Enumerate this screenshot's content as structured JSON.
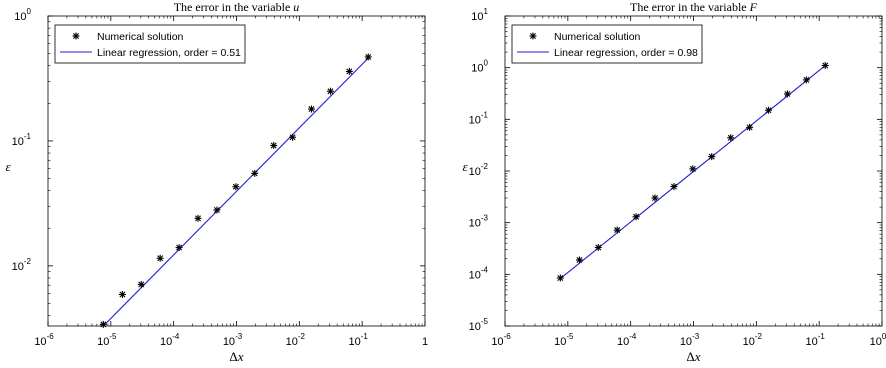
{
  "chart_data": [
    {
      "type": "scatter",
      "title": "The error in the variable ",
      "title_var": "u",
      "xlabel": "Δx",
      "ylabel": "ε",
      "xscale": "log",
      "yscale": "log",
      "xlim": [
        1e-06,
        1
      ],
      "ylim": [
        0.0033,
        1
      ],
      "xticks": [
        1e-06,
        1e-05,
        0.0001,
        0.001,
        0.01,
        0.1,
        1
      ],
      "xtick_labels": [
        {
          "b": "10",
          "e": "-6"
        },
        {
          "b": "10",
          "e": "-5"
        },
        {
          "b": "10",
          "e": "-4"
        },
        {
          "b": "10",
          "e": "-3"
        },
        {
          "b": "10",
          "e": "-2"
        },
        {
          "b": "10",
          "e": "-1"
        },
        {
          "b": "1",
          "e": ""
        }
      ],
      "yticks": [
        0.01,
        0.1,
        1
      ],
      "ytick_labels": [
        {
          "b": "10",
          "e": "-2"
        },
        {
          "b": "10",
          "e": "-1"
        },
        {
          "b": "10",
          "e": "0"
        }
      ],
      "legend_position": "top-left",
      "series": [
        {
          "name": "Numerical solution",
          "kind": "markers",
          "color": "#000000",
          "x": [
            7.6e-06,
            1.53e-05,
            3.05e-05,
            6.1e-05,
            0.000122,
            0.000244,
            0.000488,
            0.000977,
            0.00195,
            0.00391,
            0.00781,
            0.0156,
            0.0313,
            0.0625,
            0.125
          ],
          "y": [
            0.0034,
            0.0059,
            0.0071,
            0.0115,
            0.014,
            0.024,
            0.028,
            0.043,
            0.055,
            0.092,
            0.107,
            0.18,
            0.25,
            0.36,
            0.47
          ]
        },
        {
          "name": "Linear regression, order = 0.51",
          "kind": "line",
          "color": "#1f1fd0",
          "x": [
            7.6e-06,
            0.125
          ],
          "y": [
            0.0033,
            0.46
          ]
        }
      ]
    },
    {
      "type": "scatter",
      "title": "The error in the variable ",
      "title_var": "F",
      "xlabel": "Δx",
      "ylabel": "ε",
      "xscale": "log",
      "yscale": "log",
      "xlim": [
        1e-06,
        1
      ],
      "ylim": [
        1e-05,
        10
      ],
      "xticks": [
        1e-06,
        1e-05,
        0.0001,
        0.001,
        0.01,
        0.1,
        1
      ],
      "xtick_labels": [
        {
          "b": "10",
          "e": "-6"
        },
        {
          "b": "10",
          "e": "-5"
        },
        {
          "b": "10",
          "e": "-4"
        },
        {
          "b": "10",
          "e": "-3"
        },
        {
          "b": "10",
          "e": "-2"
        },
        {
          "b": "10",
          "e": "-1"
        },
        {
          "b": "10",
          "e": "0"
        }
      ],
      "yticks": [
        1e-05,
        0.0001,
        0.001,
        0.01,
        0.1,
        1,
        10
      ],
      "ytick_labels": [
        {
          "b": "10",
          "e": "-5"
        },
        {
          "b": "10",
          "e": "-4"
        },
        {
          "b": "10",
          "e": "-3"
        },
        {
          "b": "10",
          "e": "-2"
        },
        {
          "b": "10",
          "e": "-1"
        },
        {
          "b": "10",
          "e": "0"
        },
        {
          "b": "10",
          "e": "1"
        }
      ],
      "legend_position": "top-left",
      "series": [
        {
          "name": "Numerical solution",
          "kind": "markers",
          "color": "#000000",
          "x": [
            7.6e-06,
            1.53e-05,
            3.05e-05,
            6.1e-05,
            0.000122,
            0.000244,
            0.000488,
            0.000977,
            0.00195,
            0.00391,
            0.00781,
            0.0156,
            0.0313,
            0.0625,
            0.125
          ],
          "y": [
            8.5e-05,
            0.00019,
            0.00033,
            0.00072,
            0.0013,
            0.003,
            0.005,
            0.011,
            0.019,
            0.044,
            0.07,
            0.15,
            0.31,
            0.58,
            1.1
          ]
        },
        {
          "name": "Linear regression, order = 0.98",
          "kind": "line",
          "color": "#1f1fd0",
          "x": [
            7.6e-06,
            0.125
          ],
          "y": [
            8.3e-05,
            1.1
          ]
        }
      ]
    }
  ]
}
